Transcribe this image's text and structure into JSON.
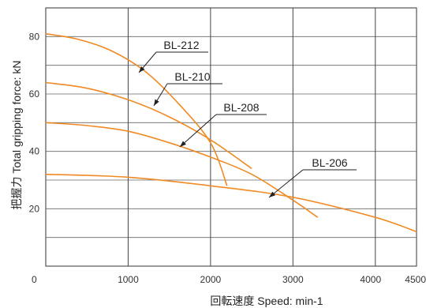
{
  "chart_data": {
    "type": "line",
    "xlabel": "回転速度 Speed: min-1",
    "ylabel": "把握力 Total gripping force: kN",
    "xlim": [
      0,
      4500
    ],
    "ylim": [
      0,
      90
    ],
    "x_ticks": [
      0,
      1000,
      2000,
      3000,
      4000,
      4500
    ],
    "x_tick_labels": [
      "0",
      "1000",
      "2000",
      "3000",
      "4000",
      "4500"
    ],
    "y_ticks": [
      20,
      40,
      60,
      80
    ],
    "y_tick_labels": [
      "20",
      "40",
      "60",
      "80"
    ],
    "grid": true,
    "line_color": "#f08a24",
    "series": [
      {
        "name": "BL-212",
        "x": [
          0,
          400,
          800,
          1200,
          1600,
          2000,
          2200
        ],
        "y": [
          81,
          79,
          75,
          68,
          57,
          43,
          28
        ]
      },
      {
        "name": "BL-210",
        "x": [
          0,
          500,
          1000,
          1500,
          2000,
          2500
        ],
        "y": [
          64,
          62,
          58,
          52,
          44,
          34
        ]
      },
      {
        "name": "BL-208",
        "x": [
          0,
          500,
          1000,
          1500,
          2000,
          2500,
          3000,
          3300
        ],
        "y": [
          50,
          49,
          47,
          43,
          38,
          32,
          23,
          17
        ]
      },
      {
        "name": "BL-206",
        "x": [
          0,
          1000,
          2000,
          3000,
          4000,
          4500
        ],
        "y": [
          32,
          31,
          28,
          24,
          17,
          12
        ]
      }
    ]
  }
}
